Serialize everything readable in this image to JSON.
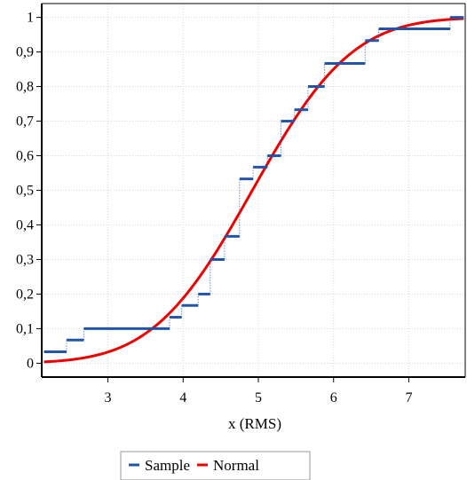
{
  "chart_data": {
    "type": "line",
    "title": "",
    "xlabel": "x (RMS)",
    "ylabel": "",
    "xlim": [
      2.12,
      7.75
    ],
    "ylim": [
      -0.04,
      1.04
    ],
    "x_ticks": [
      {
        "value": 3,
        "label": "3"
      },
      {
        "value": 4,
        "label": "4"
      },
      {
        "value": 5,
        "label": "5"
      },
      {
        "value": 6,
        "label": "6"
      },
      {
        "value": 7,
        "label": "7"
      }
    ],
    "y_ticks": [
      {
        "value": 0,
        "label": "0"
      },
      {
        "value": 0.1,
        "label": "0,1"
      },
      {
        "value": 0.2,
        "label": "0,2"
      },
      {
        "value": 0.3,
        "label": "0,3"
      },
      {
        "value": 0.4,
        "label": "0,4"
      },
      {
        "value": 0.5,
        "label": "0,5"
      },
      {
        "value": 0.6,
        "label": "0,6"
      },
      {
        "value": 0.7,
        "label": "0,7"
      },
      {
        "value": 0.8,
        "label": "0,8"
      },
      {
        "value": 0.9,
        "label": "0,9"
      },
      {
        "value": 1,
        "label": "1"
      }
    ],
    "grid": true,
    "legend_position": "bottom-center",
    "series": [
      {
        "name": "Sample",
        "kind": "empirical-cdf-step",
        "color": "#2255aa",
        "steps": [
          {
            "x0": 2.15,
            "x1": 2.45,
            "y": 0.033
          },
          {
            "x0": 2.45,
            "x1": 2.68,
            "y": 0.067
          },
          {
            "x0": 2.68,
            "x1": 3.82,
            "y": 0.1
          },
          {
            "x0": 3.82,
            "x1": 3.98,
            "y": 0.133
          },
          {
            "x0": 3.98,
            "x1": 4.2,
            "y": 0.167
          },
          {
            "x0": 4.2,
            "x1": 4.36,
            "y": 0.2
          },
          {
            "x0": 4.36,
            "x1": 4.55,
            "y": 0.3
          },
          {
            "x0": 4.55,
            "x1": 4.75,
            "y": 0.367
          },
          {
            "x0": 4.75,
            "x1": 4.93,
            "y": 0.533
          },
          {
            "x0": 4.93,
            "x1": 5.12,
            "y": 0.567
          },
          {
            "x0": 5.12,
            "x1": 5.3,
            "y": 0.6
          },
          {
            "x0": 5.3,
            "x1": 5.48,
            "y": 0.7
          },
          {
            "x0": 5.48,
            "x1": 5.66,
            "y": 0.733
          },
          {
            "x0": 5.66,
            "x1": 5.88,
            "y": 0.8
          },
          {
            "x0": 5.88,
            "x1": 6.42,
            "y": 0.867
          },
          {
            "x0": 6.42,
            "x1": 6.6,
            "y": 0.933
          },
          {
            "x0": 6.6,
            "x1": 7.55,
            "y": 0.967
          },
          {
            "x0": 7.55,
            "x1": 7.73,
            "y": 1.0
          }
        ]
      },
      {
        "name": "Normal",
        "kind": "normal-cdf",
        "color": "#ee0000",
        "mean": 4.92,
        "sd": 1.04,
        "x_range": [
          2.15,
          7.73
        ]
      }
    ]
  }
}
